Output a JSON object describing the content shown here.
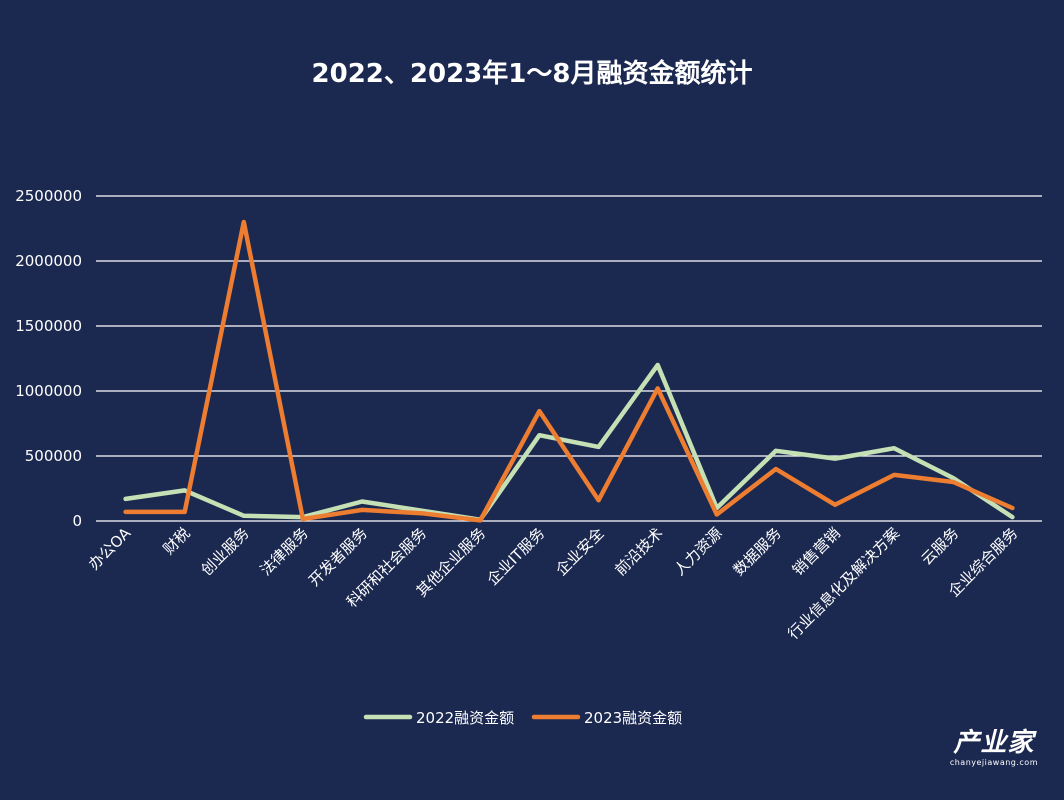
{
  "chart_data": {
    "type": "line",
    "title": "2022、2023年1～8月融资金额统计",
    "categories": [
      "办公OA",
      "财税",
      "创业服务",
      "法律服务",
      "开发者服务",
      "科研和社会服务",
      "其他企业服务",
      "企业IT服务",
      "企业安全",
      "前沿技术",
      "人力资源",
      "数据服务",
      "销售营销",
      "行业信息化及解决方案",
      "云服务",
      "企业综合服务"
    ],
    "series": [
      {
        "name": "2022融资金额",
        "color": "#c5e0b4",
        "values": [
          170000,
          235000,
          40000,
          30000,
          150000,
          80000,
          10000,
          660000,
          570000,
          1200000,
          100000,
          540000,
          480000,
          560000,
          330000,
          30000
        ]
      },
      {
        "name": "2023融资金额",
        "color": "#ed7d31",
        "values": [
          70000,
          70000,
          2300000,
          15000,
          85000,
          60000,
          5000,
          845000,
          160000,
          1020000,
          50000,
          400000,
          125000,
          355000,
          300000,
          100000
        ]
      }
    ],
    "yticks": [
      "0",
      "500000",
      "1000000",
      "1500000",
      "2000000",
      "2500000"
    ],
    "ylim": [
      0,
      2500000
    ],
    "grid": true,
    "legend": "bottom"
  },
  "watermark": {
    "main": "产业家",
    "sub": "chanyejiawang.com"
  }
}
